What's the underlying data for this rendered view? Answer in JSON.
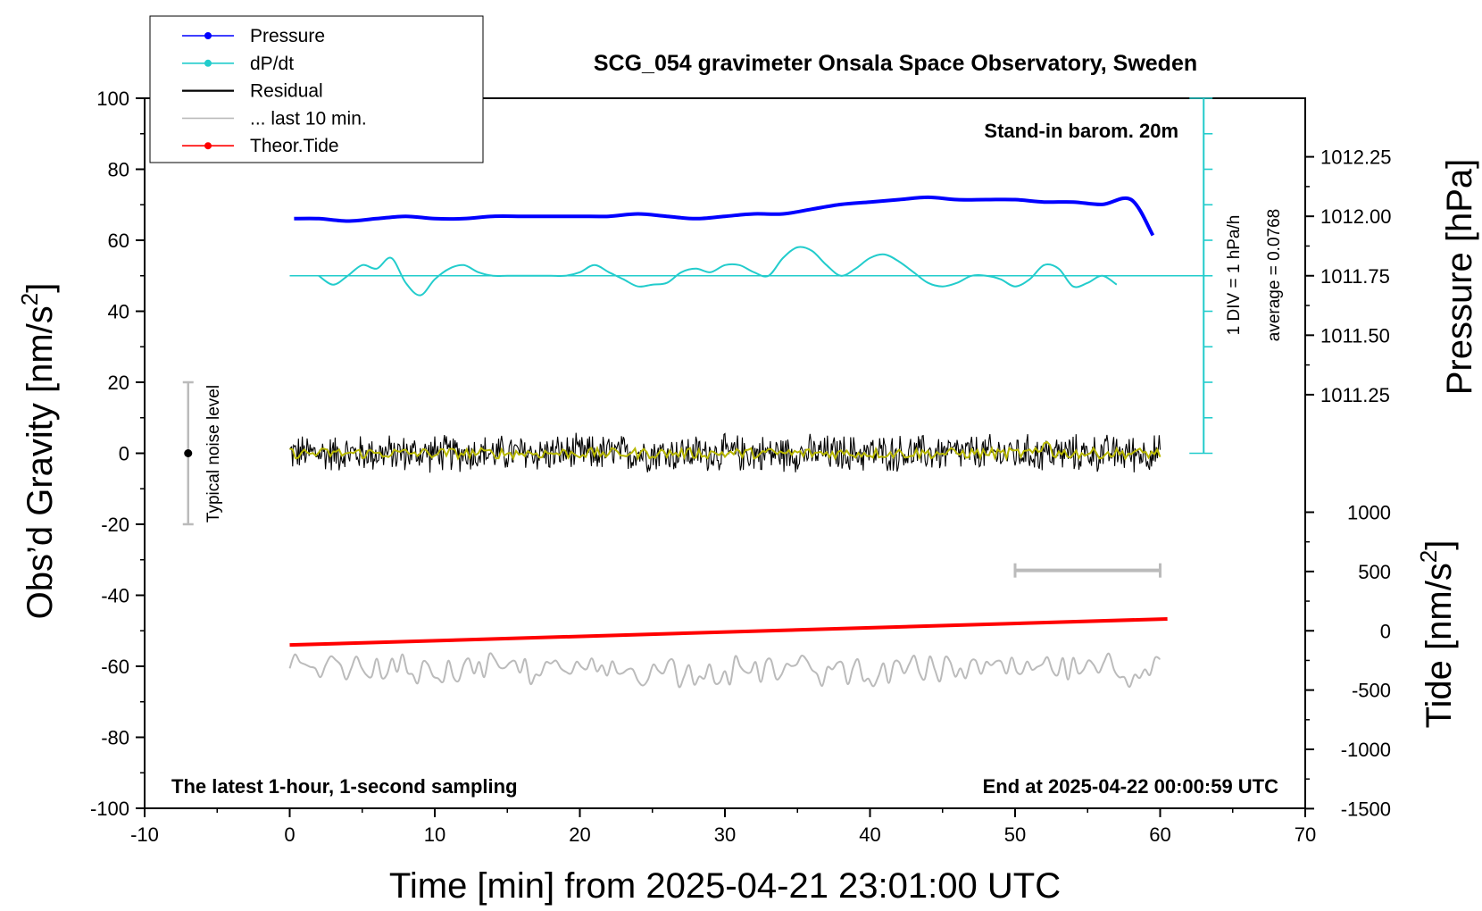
{
  "chart_data": {
    "type": "line",
    "title": "SCG_054 gravimeter Onsala Space Observatory, Sweden",
    "xlabel": "Time [min] from 2025-04-21 23:01:00 UTC",
    "xlim": [
      -10,
      70
    ],
    "xticks": [
      "-10",
      "0",
      "10",
      "20",
      "30",
      "40",
      "50",
      "60",
      "70"
    ],
    "y_left": {
      "label_main": "Obs’d Gravity [nm/s",
      "label_sup": "2",
      "label_end": "]",
      "lim": [
        -100,
        100
      ],
      "ticks": [
        "-100",
        "-80",
        "-60",
        "-40",
        "-20",
        "0",
        "20",
        "40",
        "60",
        "80",
        "100"
      ]
    },
    "y_right_pressure": {
      "label": "Pressure [hPa]",
      "ticks": [
        "1011.25",
        "1011.50",
        "1011.75",
        "1012.00",
        "1012.25"
      ],
      "tick_values": [
        1011.25,
        1011.5,
        1011.75,
        1012.0,
        1012.25
      ]
    },
    "y_right_tide": {
      "label_main": "Tide [nm/s",
      "label_sup": "2",
      "label_end": "]",
      "ticks": [
        "-1500",
        "-1000",
        "-500",
        "0",
        "500",
        "1000"
      ],
      "tick_values": [
        -1500,
        -1000,
        -500,
        0,
        500,
        1000
      ]
    },
    "legend": {
      "placement": "top-left",
      "items": [
        {
          "label": "Pressure",
          "color": "#0000ff",
          "marker": true
        },
        {
          "label": "dP/dt",
          "color": "#22cccc",
          "marker": true
        },
        {
          "label": "Residual",
          "color": "#000000",
          "marker": false
        },
        {
          "label": "... last 10 min.",
          "color": "#bbbbbb",
          "marker": false
        },
        {
          "label": "Theor.Tide",
          "color": "#ff0000",
          "marker": true
        }
      ]
    },
    "series": [
      {
        "name": "Pressure",
        "color": "#0000ff",
        "axis": "pressure",
        "x": [
          0.3,
          2,
          4,
          6,
          8,
          10,
          12,
          14,
          16,
          18,
          20,
          22,
          24,
          26,
          28,
          30,
          32,
          34,
          36,
          38,
          40,
          42,
          44,
          46,
          48,
          50,
          52,
          54,
          56,
          58,
          59.5
        ],
        "y": [
          1011.99,
          1011.99,
          1011.98,
          1011.99,
          1012.0,
          1011.99,
          1011.99,
          1012.0,
          1012.0,
          1012.0,
          1012.0,
          1012.0,
          1012.01,
          1012.0,
          1011.99,
          1012.0,
          1012.01,
          1012.01,
          1012.03,
          1012.05,
          1012.06,
          1012.07,
          1012.08,
          1012.07,
          1012.07,
          1012.07,
          1012.06,
          1012.06,
          1012.05,
          1012.07,
          1011.92
        ]
      },
      {
        "name": "dP/dt",
        "color": "#22cccc",
        "x": [
          2,
          3,
          4,
          5,
          6,
          7,
          8,
          9,
          10,
          11,
          12,
          13,
          14,
          15,
          16,
          17,
          18,
          19,
          20,
          21,
          22,
          23,
          24,
          25,
          26,
          27,
          28,
          29,
          30,
          31,
          32,
          33,
          34,
          35,
          36,
          37,
          38,
          39,
          40,
          41,
          42,
          43,
          44,
          45,
          46,
          47,
          48,
          49,
          50,
          51,
          52,
          53,
          54,
          55,
          56,
          57
        ],
        "y": [
          50,
          47.5,
          50,
          53,
          52,
          55,
          48,
          44.5,
          49,
          52,
          53,
          51,
          50,
          50,
          50,
          50,
          50,
          50,
          51,
          53,
          51,
          49,
          47,
          47.5,
          48,
          51,
          52,
          51,
          53,
          53,
          51,
          50,
          55,
          58,
          57,
          53,
          50,
          52,
          55,
          56,
          54,
          51,
          48,
          47,
          48,
          50,
          50,
          49,
          47,
          49,
          53,
          52,
          47,
          48,
          50,
          47.5
        ]
      },
      {
        "name": "Residual",
        "color": "#000000",
        "x_range": [
          0,
          60
        ],
        "center": 0,
        "amplitude": 5
      },
      {
        "name": "Residual smoothed",
        "color": "#b8b800",
        "x_range": [
          0,
          60
        ],
        "center": 0,
        "amplitude": 1.5
      },
      {
        "name": "... last 10 min.",
        "color": "#bbbbbb",
        "x_range": [
          0,
          60
        ],
        "center": -61,
        "amplitude": 4
      },
      {
        "name": "Theor.Tide",
        "color": "#ff0000",
        "axis": "tide",
        "x": [
          0,
          60.5
        ],
        "y": [
          -120,
          100
        ]
      }
    ],
    "pressure_gauge": {
      "x": 63,
      "y_range": [
        0,
        100
      ],
      "divisions": 10,
      "label_div": "1 DIV = 1 hPa/h",
      "label_avg": "average = 0.0768"
    },
    "noise_bar": {
      "x": -7,
      "y_range": [
        -20,
        20
      ],
      "label": "Typical noise level"
    },
    "scale_bar": {
      "x_range": [
        50,
        60
      ],
      "y": -33
    },
    "annotations": {
      "barometer": "Stand-in barom. 20m",
      "latest": "The latest 1-hour, 1-second sampling",
      "end": "End at 2025-04-22 00:00:59 UTC"
    }
  }
}
